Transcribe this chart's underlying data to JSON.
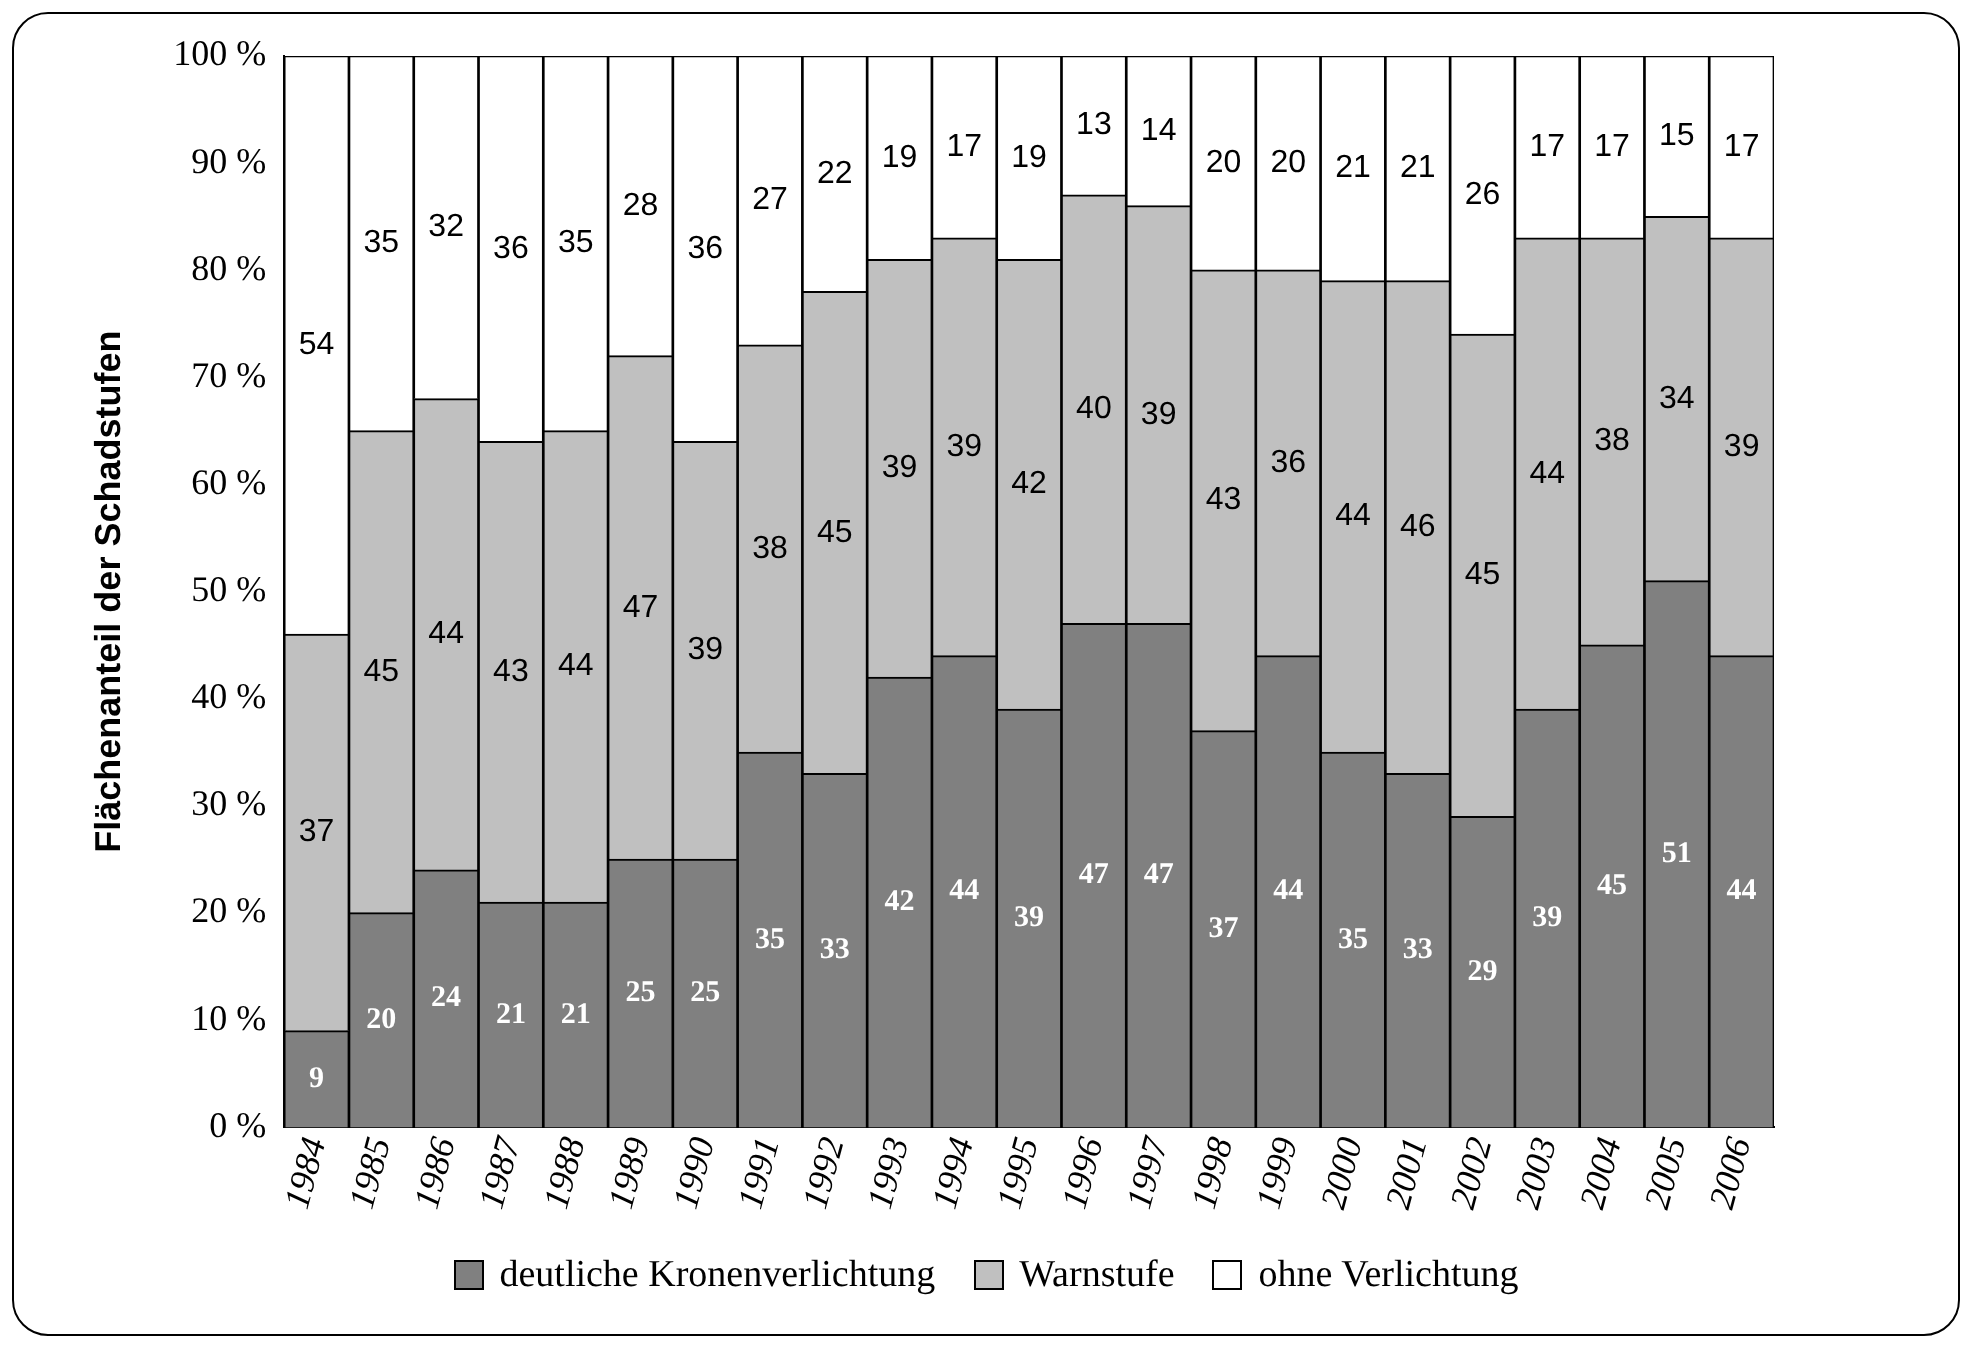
{
  "chart_data": {
    "type": "bar",
    "stacked": true,
    "ylabel": "Flächenanteil der Schadstufen",
    "categories": [
      "1984",
      "1985",
      "1986",
      "1987",
      "1988",
      "1989",
      "1990",
      "1991",
      "1992",
      "1993",
      "1994",
      "1995",
      "1996",
      "1997",
      "1998",
      "1999",
      "2000",
      "2001",
      "2002",
      "2003",
      "2004",
      "2005",
      "2006"
    ],
    "series": [
      {
        "name": "deutliche Kronenverlichtung",
        "color": "#808080",
        "values": [
          9,
          20,
          24,
          21,
          21,
          25,
          25,
          35,
          33,
          42,
          44,
          39,
          47,
          47,
          37,
          44,
          35,
          33,
          29,
          39,
          45,
          51,
          44
        ]
      },
      {
        "name": "Warnstufe",
        "color": "#c0c0c0",
        "values": [
          37,
          45,
          44,
          43,
          44,
          47,
          39,
          38,
          45,
          39,
          39,
          42,
          40,
          39,
          43,
          36,
          44,
          46,
          45,
          44,
          38,
          34,
          39
        ]
      },
      {
        "name": "ohne Verlichtung",
        "color": "#ffffff",
        "values": [
          54,
          35,
          32,
          36,
          35,
          28,
          36,
          27,
          22,
          19,
          17,
          19,
          13,
          14,
          20,
          20,
          21,
          21,
          26,
          17,
          17,
          15,
          17
        ]
      }
    ],
    "ylim": [
      0,
      100
    ],
    "yticks": [
      {
        "value": 0,
        "label": "0 %"
      },
      {
        "value": 10,
        "label": "10 %"
      },
      {
        "value": 20,
        "label": "20 %"
      },
      {
        "value": 30,
        "label": "30 %"
      },
      {
        "value": 40,
        "label": "40 %"
      },
      {
        "value": 50,
        "label": "50 %"
      },
      {
        "value": 60,
        "label": "60 %"
      },
      {
        "value": 70,
        "label": "70 %"
      },
      {
        "value": 80,
        "label": "80 %"
      },
      {
        "value": 90,
        "label": "90 %"
      },
      {
        "value": 100,
        "label": "100 %"
      }
    ],
    "data_labels": true,
    "grid": false,
    "legend": "bottom"
  }
}
